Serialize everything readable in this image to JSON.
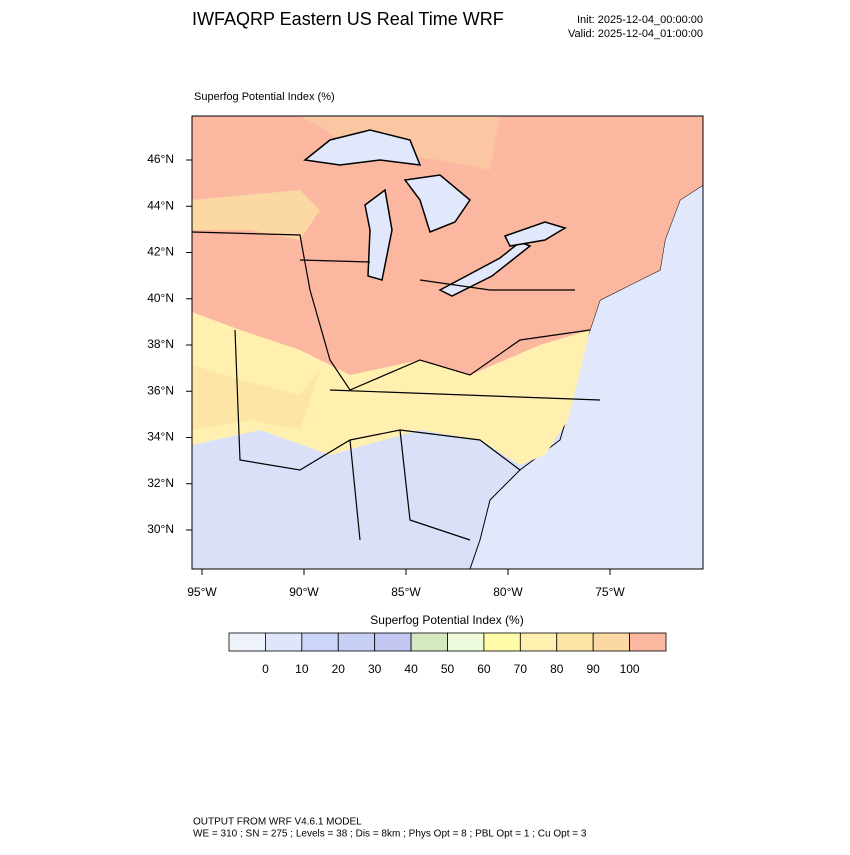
{
  "header": {
    "title": "IWFAQRP Eastern US Real Time WRF",
    "init": "Init: 2025-12-04_00:00:00",
    "valid": "Valid: 2025-12-04_01:00:00"
  },
  "map": {
    "label": "Superfog Potential Index   (%)",
    "lat_labels": [
      "46°N",
      "44°N",
      "42°N",
      "40°N",
      "38°N",
      "36°N",
      "34°N",
      "32°N",
      "30°N"
    ],
    "lon_labels": [
      "95°W",
      "90°W",
      "85°W",
      "80°W",
      "75°W"
    ]
  },
  "colorbar": {
    "title": "Superfog Potential Index  (%)",
    "colors": [
      "#eef2fa",
      "#dfe6fb",
      "#ccd6f8",
      "#c6cff4",
      "#c4c6f2",
      "#d6e8c0",
      "#eefadc",
      "#fffba8",
      "#fff0b0",
      "#fde6a5",
      "#fcd8a3",
      "#fbb7a0"
    ],
    "levels": [
      0,
      10,
      20,
      30,
      40,
      50,
      60,
      70,
      80,
      90,
      100
    ]
  },
  "footer": {
    "line1": "OUTPUT FROM WRF V4.6.1 MODEL",
    "line2": "WE = 310 ; SN = 275 ; Levels = 38 ; Dis = 8km ; Phys Opt = 8 ; PBL Opt = 1 ; Cu Opt = 3"
  }
}
